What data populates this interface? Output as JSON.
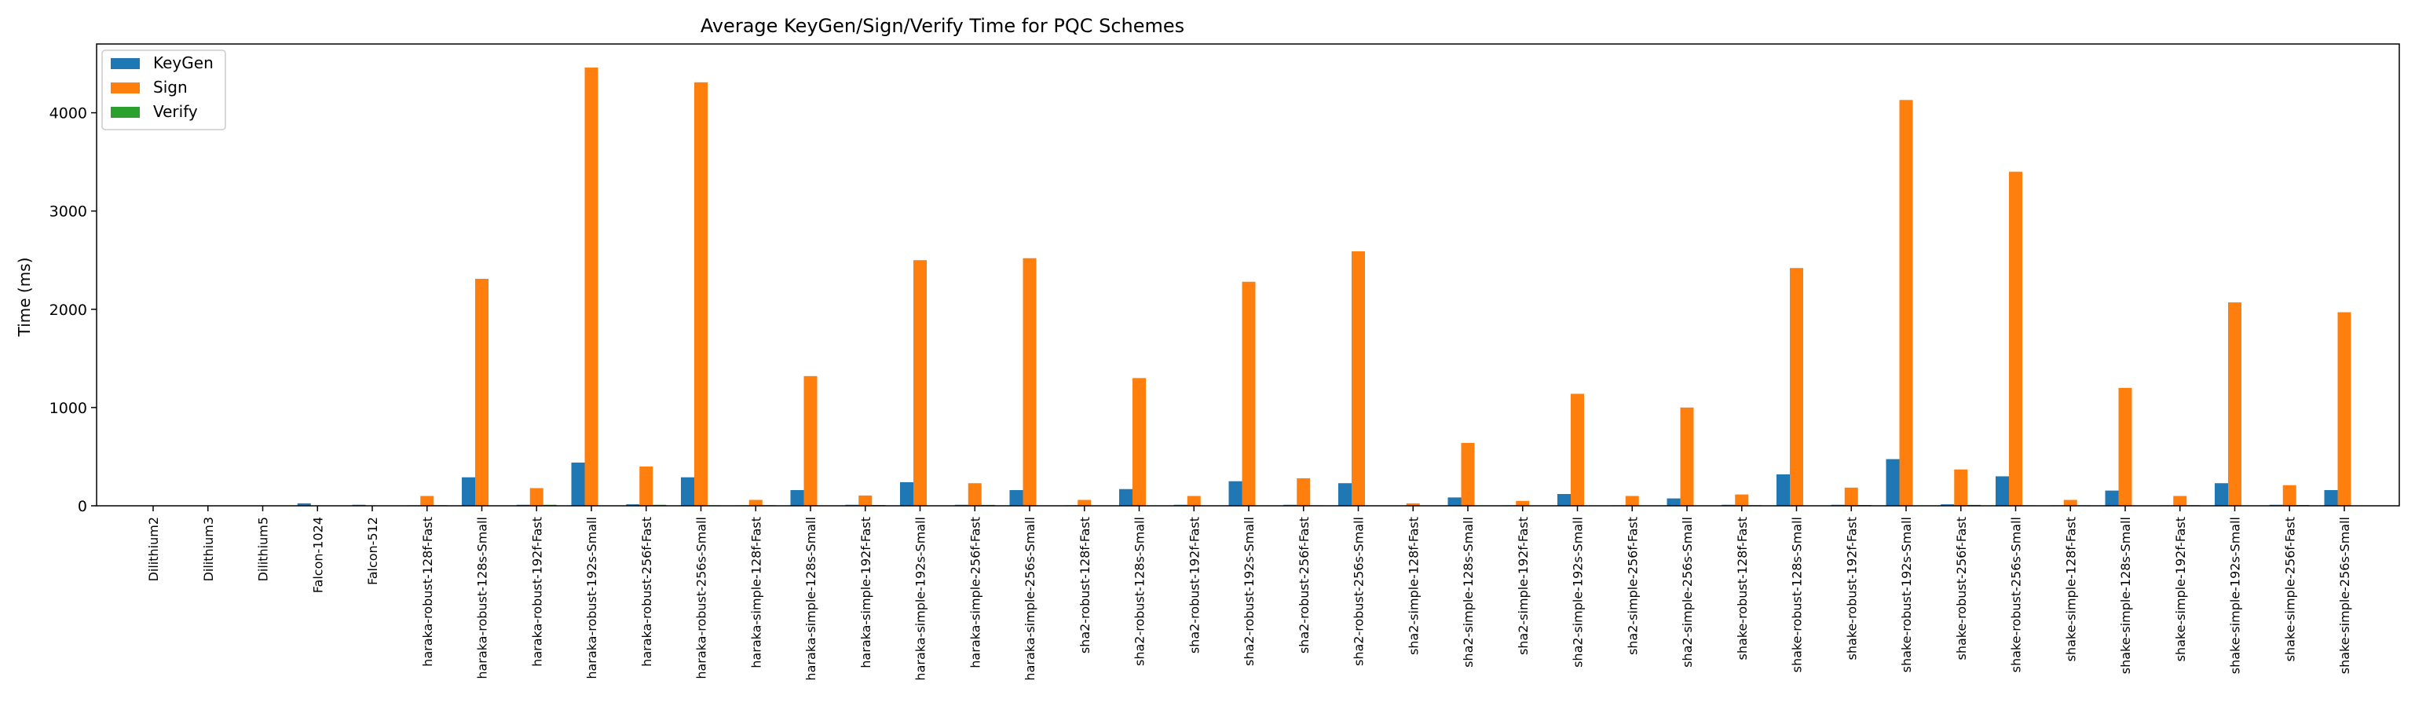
{
  "chart_data": {
    "type": "bar",
    "title": "Average KeyGen/Sign/Verify Time for PQC Schemes",
    "xlabel": "",
    "ylabel": "Time (ms)",
    "ylim": [
      0,
      4700
    ],
    "yticks": [
      0,
      1000,
      2000,
      3000,
      4000
    ],
    "grid": false,
    "legend_position": "top-left",
    "categories": [
      "Dilithium2",
      "Dilithium3",
      "Dilithium5",
      "Falcon-1024",
      "Falcon-512",
      "haraka-robust-128f-Fast",
      "haraka-robust-128s-Small",
      "haraka-robust-192f-Fast",
      "haraka-robust-192s-Small",
      "haraka-robust-256f-Fast",
      "haraka-robust-256s-Small",
      "haraka-simple-128f-Fast",
      "haraka-simple-128s-Small",
      "haraka-simple-192f-Fast",
      "haraka-simple-192s-Small",
      "haraka-simple-256f-Fast",
      "haraka-simple-256s-Small",
      "sha2-robust-128f-Fast",
      "sha2-robust-128s-Small",
      "sha2-robust-192f-Fast",
      "sha2-robust-192s-Small",
      "sha2-robust-256f-Fast",
      "sha2-robust-256s-Small",
      "sha2-simple-128f-Fast",
      "sha2-simple-128s-Small",
      "sha2-simple-192f-Fast",
      "sha2-simple-192s-Small",
      "sha2-simple-256f-Fast",
      "sha2-simple-256s-Small",
      "shake-robust-128f-Fast",
      "shake-robust-128s-Small",
      "shake-robust-192f-Fast",
      "shake-robust-192s-Small",
      "shake-robust-256f-Fast",
      "shake-robust-256s-Small",
      "shake-simple-128f-Fast",
      "shake-simple-128s-Small",
      "shake-simple-192f-Fast",
      "shake-simple-192s-Small",
      "shake-simple-256f-Fast",
      "shake-simple-256s-Small"
    ],
    "series": [
      {
        "name": "KeyGen",
        "color": "#1f77b4",
        "values": [
          0.1,
          0.1,
          0.1,
          25,
          10,
          5,
          290,
          10,
          440,
          15,
          290,
          5,
          160,
          10,
          240,
          10,
          160,
          5,
          170,
          10,
          250,
          10,
          230,
          3,
          85,
          5,
          120,
          5,
          75,
          10,
          320,
          10,
          475,
          15,
          300,
          5,
          155,
          5,
          230,
          10,
          160
        ]
      },
      {
        "name": "Sign",
        "color": "#ff7f0e",
        "values": [
          0.3,
          0.3,
          0.3,
          2,
          1,
          100,
          2310,
          180,
          4460,
          400,
          4310,
          60,
          1320,
          105,
          2500,
          230,
          2520,
          60,
          1300,
          100,
          2280,
          280,
          2590,
          25,
          640,
          50,
          1140,
          100,
          1000,
          115,
          2420,
          185,
          4130,
          370,
          3400,
          60,
          1200,
          100,
          2070,
          210,
          1970
        ]
      },
      {
        "name": "Verify",
        "color": "#2ca02c",
        "values": [
          0.1,
          0.1,
          0.1,
          0.2,
          0.1,
          6,
          3,
          10,
          4,
          10,
          5,
          6,
          2,
          8,
          3,
          9,
          4,
          3,
          1,
          4,
          2,
          5,
          3,
          2,
          1,
          3,
          2,
          4,
          2,
          6,
          3,
          8,
          4,
          9,
          5,
          5,
          2,
          6,
          3,
          8,
          4
        ]
      }
    ]
  }
}
